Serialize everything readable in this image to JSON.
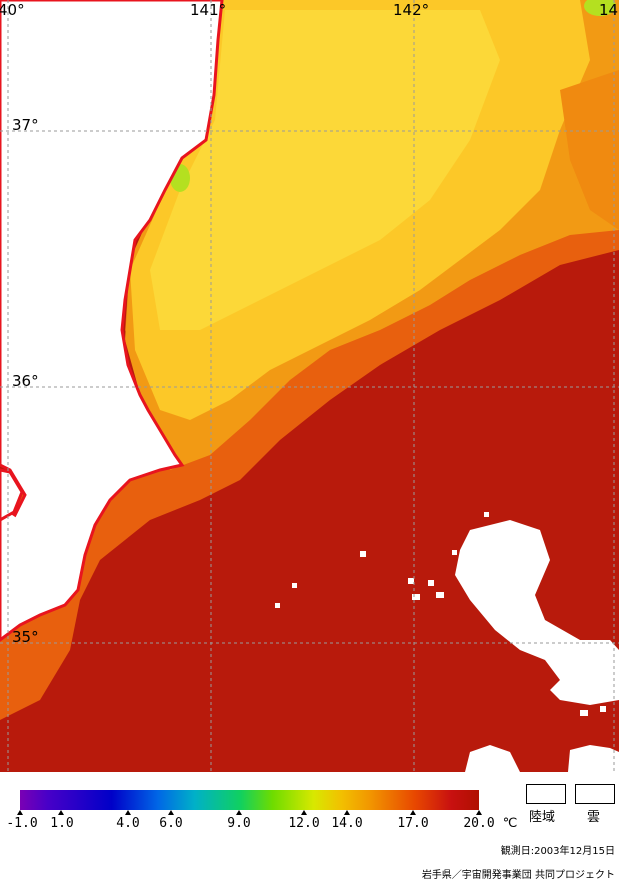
{
  "map": {
    "lon_labels": [
      "40°",
      "141°",
      "142°",
      "14"
    ],
    "lat_labels": [
      "37°",
      "36°",
      "35°"
    ],
    "colors": {
      "land": "#ffffff",
      "coast": "#e8141e",
      "grid": "#9a9a9a",
      "warm_deep": "#b81a0c",
      "warm": "#cc2a0a",
      "orange": "#f08a10",
      "yellow_orange": "#f8b818",
      "yellow": "#fcd42a",
      "green": "#b4e020"
    }
  },
  "legend": {
    "ticks": [
      "-1.0",
      "1.0",
      "4.0",
      "6.0",
      "9.0",
      "12.0",
      "14.0",
      "17.0",
      "20.0"
    ],
    "unit": "℃",
    "land_label": "陸域",
    "cloud_label": "雲"
  },
  "footer": {
    "date": "観測日:2003年12月15日",
    "credit": "岩手県／宇宙開発事業団 共同プロジェクト"
  }
}
